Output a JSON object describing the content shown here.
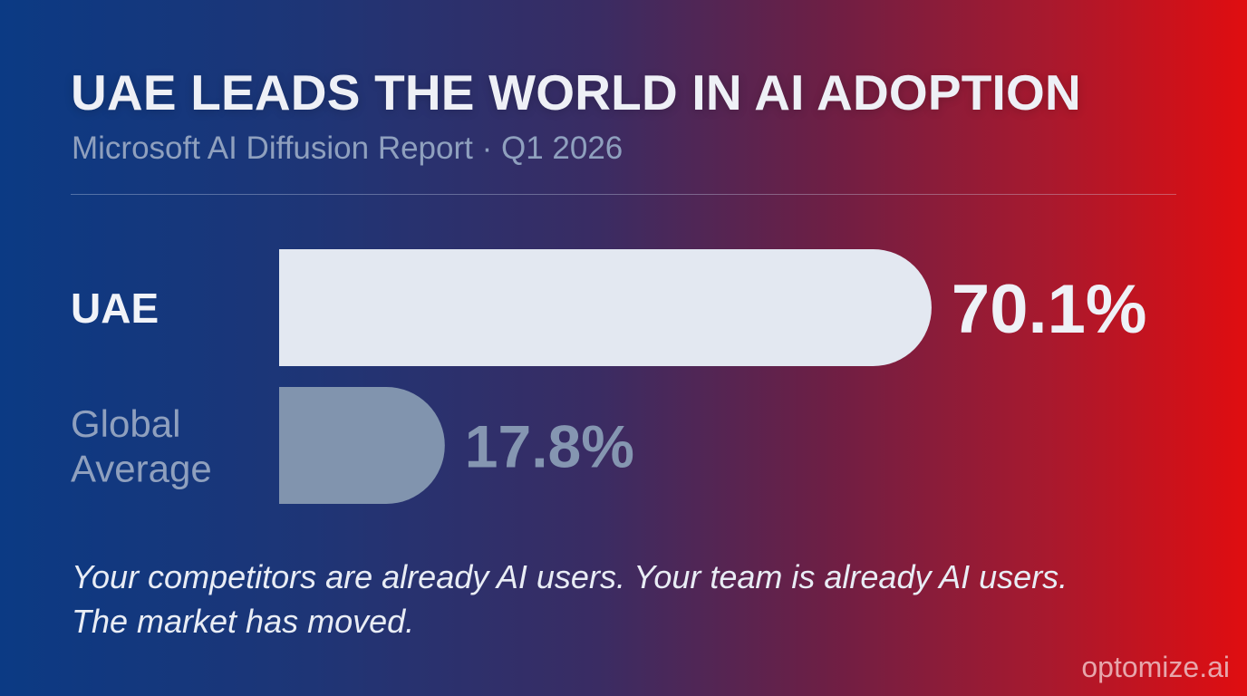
{
  "header": {
    "title": "UAE LEADS THE WORLD IN AI ADOPTION",
    "subtitle": "Microsoft AI Diffusion Report · Q1 2026"
  },
  "chart_data": {
    "type": "bar",
    "orientation": "horizontal",
    "title": "UAE LEADS THE WORLD IN AI ADOPTION",
    "subtitle": "Microsoft AI Diffusion Report · Q1 2026",
    "categories": [
      "UAE",
      "Global Average"
    ],
    "category_lines": [
      [
        "UAE"
      ],
      [
        "Global",
        "Average"
      ]
    ],
    "values": [
      70.1,
      17.8
    ],
    "value_labels": [
      "70.1%",
      "17.8%"
    ],
    "xlim": [
      0,
      100
    ],
    "grid": false,
    "legend": "none",
    "colors": {
      "primary_bar": "#e3e8f1",
      "secondary_bar": "#8194ae",
      "primary_label": "#eef1f7",
      "secondary_label": "#8596b1"
    }
  },
  "footer": {
    "tagline_line1": "Your competitors are already AI users. Your team is already AI users.",
    "tagline_line2": "The market has moved.",
    "brand": "optomize.ai"
  }
}
